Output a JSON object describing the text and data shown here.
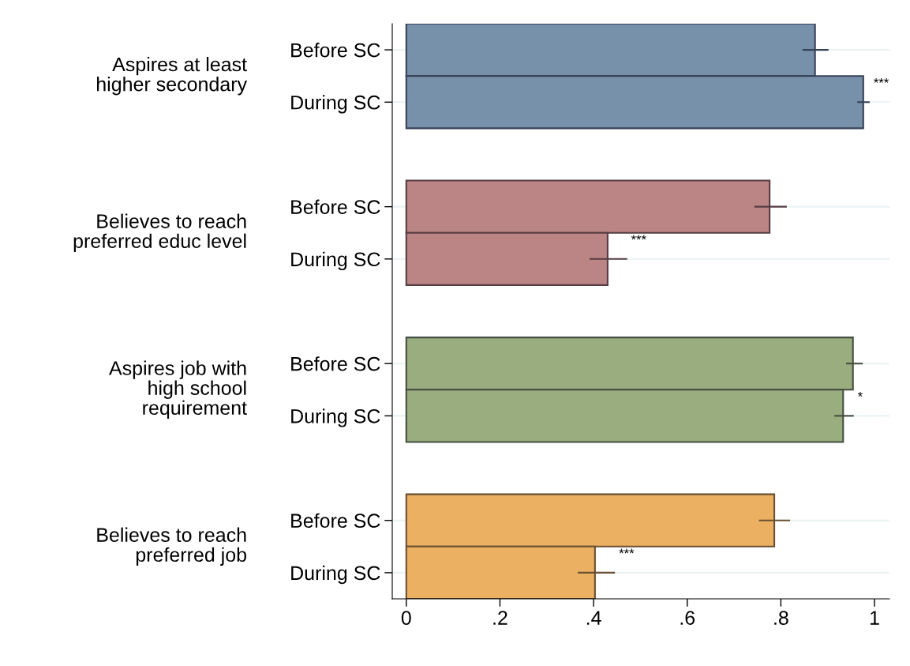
{
  "chart_data": {
    "type": "bar",
    "orientation": "horizontal",
    "categories": [
      "Before SC",
      "During SC",
      null,
      "Before SC",
      "During SC",
      null,
      "Before SC",
      "During SC",
      null,
      "Before SC",
      "During SC"
    ],
    "series": [
      {
        "values": [
          0.873,
          0.976,
          null,
          0.776,
          0.43,
          null,
          0.954,
          0.933,
          null,
          0.786,
          0.403
        ],
        "colors": [
          "#7891ab",
          "#7891ab",
          null,
          "#bc8585",
          "#bc8585",
          null,
          "#9aad7f",
          "#9aad7f",
          null,
          "#ecb063",
          "#ecb063"
        ],
        "errors": [
          [
            0.848,
            0.9
          ],
          [
            0.965,
            0.988
          ],
          null,
          [
            0.745,
            0.811
          ],
          [
            0.393,
            0.47
          ],
          null,
          [
            0.941,
            0.973
          ],
          [
            0.916,
            0.954
          ],
          null,
          [
            0.755,
            0.818
          ],
          [
            0.368,
            0.444
          ]
        ],
        "value_labels": [
          null,
          "***",
          null,
          null,
          "***",
          null,
          null,
          "*",
          null,
          null,
          "***"
        ]
      }
    ],
    "annotations": [
      "Aspires at least\nhigher secondary",
      "Believes to reach\npreferred educ level",
      "Aspires job with\nhigh school\nrequirement",
      "Believes to reach\npreferred job"
    ],
    "xlim": [
      -0.03,
      1.032
    ],
    "xticks": [
      0,
      {
        "value": 0.2,
        "label": ".2"
      },
      {
        "value": 0.4,
        "label": ".4"
      },
      {
        "value": 0.6,
        "label": ".6"
      },
      {
        "value": 0.8,
        "label": ".8"
      },
      1
    ],
    "grid": "y",
    "legend": false
  }
}
